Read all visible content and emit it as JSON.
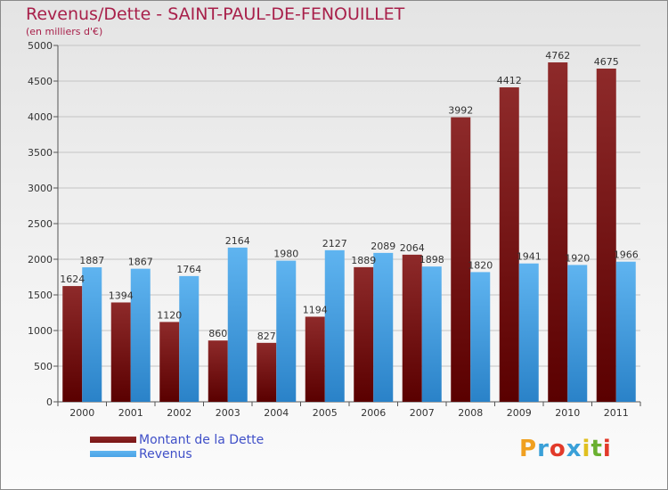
{
  "header": {
    "title": "Revenus/Dette - SAINT-PAUL-DE-FENOUILLET",
    "subtitle": "(en milliers d'€)"
  },
  "legend": {
    "items": [
      {
        "label": "Montant de la Dette",
        "color": "#7a1414"
      },
      {
        "label": "Revenus",
        "color": "#4aa3e6"
      }
    ]
  },
  "logo": {
    "letters": [
      "P",
      "r",
      "o",
      "x",
      "i",
      "t",
      "i"
    ],
    "colors": [
      "#f0a020",
      "#3aa0d8",
      "#e23a2a",
      "#3aa0d8",
      "#e0c020",
      "#6ab030",
      "#e23a2a"
    ]
  },
  "chart_data": {
    "type": "bar",
    "title": "Revenus/Dette - SAINT-PAUL-DE-FENOUILLET",
    "subtitle": "(en milliers d'€)",
    "categories": [
      "2000",
      "2001",
      "2002",
      "2003",
      "2004",
      "2005",
      "2006",
      "2007",
      "2008",
      "2009",
      "2010",
      "2011"
    ],
    "series": [
      {
        "name": "Montant de la Dette",
        "color": "#7a1414",
        "values": [
          1624,
          1394,
          1120,
          860,
          827,
          1194,
          1889,
          2064,
          3992,
          4412,
          4762,
          4675
        ]
      },
      {
        "name": "Revenus",
        "color": "#4aa3e6",
        "values": [
          1887,
          1867,
          1764,
          2164,
          1980,
          2127,
          2089,
          1898,
          1820,
          1941,
          1920,
          1966
        ]
      }
    ],
    "ylim": [
      0,
      5000
    ],
    "yticks": [
      0,
      500,
      1000,
      1500,
      2000,
      2500,
      3000,
      3500,
      4000,
      4500,
      5000
    ],
    "grid": true,
    "legend_position": "bottom-left"
  }
}
